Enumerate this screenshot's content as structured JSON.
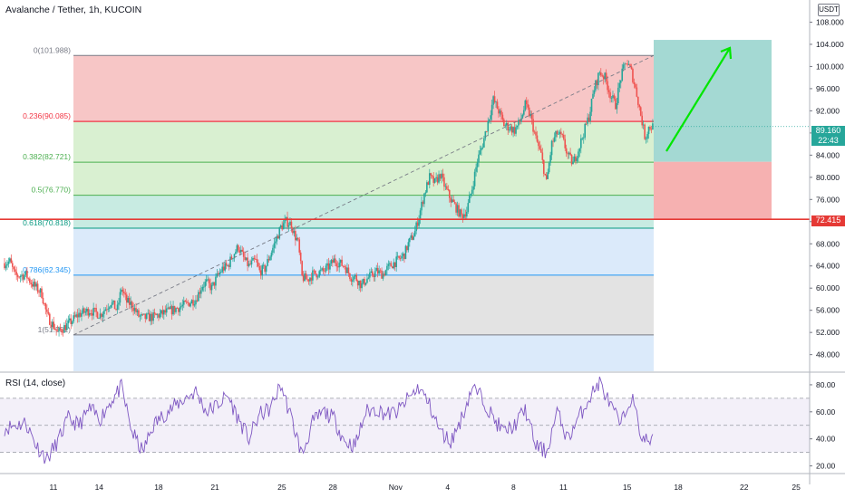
{
  "header": {
    "title": "Avalanche / Tether, 1h, KUCOIN",
    "currency": "USDT"
  },
  "price_badges": {
    "current_price": "89.160",
    "countdown": "22:43",
    "level_price": "72.415"
  },
  "colors": {
    "bull_candle": "#26a69a",
    "bear_candle": "#ef5350",
    "rsi_line": "#7e57c2",
    "arrow": "#00e600",
    "horizontal_line": "#e53935"
  },
  "chart_data": [
    {
      "type": "candlestick",
      "instrument": "Avalanche / Tether",
      "timeframe": "1h",
      "exchange": "KUCOIN",
      "x_ticks": [
        "11",
        "14",
        "18",
        "21",
        "25",
        "28",
        "Nov",
        "4",
        "8",
        "11",
        "15",
        "18",
        "22",
        "25"
      ],
      "y_ticks": [
        "48.000",
        "52.000",
        "56.000",
        "60.000",
        "64.000",
        "68.000",
        "72.000",
        "76.000",
        "80.000",
        "84.000",
        "88.000",
        "92.000",
        "96.000",
        "100.000",
        "104.000",
        "108.000"
      ],
      "ylim": [
        45,
        112
      ],
      "price_path": [
        {
          "x": 0,
          "y": 64.5
        },
        {
          "x": 0.5,
          "y": 64.8
        },
        {
          "x": 1,
          "y": 62.2
        },
        {
          "x": 2,
          "y": 62.4
        },
        {
          "x": 2.5,
          "y": 61.0
        },
        {
          "x": 3,
          "y": 60.0
        },
        {
          "x": 3.5,
          "y": 59.0
        },
        {
          "x": 4,
          "y": 55.0
        },
        {
          "x": 4.5,
          "y": 53.5
        },
        {
          "x": 5,
          "y": 52.0
        },
        {
          "x": 6,
          "y": 53.5
        },
        {
          "x": 7,
          "y": 55.3
        },
        {
          "x": 8,
          "y": 56.0
        },
        {
          "x": 9,
          "y": 55.2
        },
        {
          "x": 10,
          "y": 57.5
        },
        {
          "x": 10.6,
          "y": 56.0
        },
        {
          "x": 11,
          "y": 60.0
        },
        {
          "x": 11.5,
          "y": 57.5
        },
        {
          "x": 12,
          "y": 57.0
        },
        {
          "x": 12.6,
          "y": 55.0
        },
        {
          "x": 13,
          "y": 54.6
        },
        {
          "x": 14,
          "y": 54.8
        },
        {
          "x": 14.6,
          "y": 55.2
        },
        {
          "x": 15,
          "y": 55.5
        },
        {
          "x": 16,
          "y": 56.2
        },
        {
          "x": 17,
          "y": 57.0
        },
        {
          "x": 18,
          "y": 58.0
        },
        {
          "x": 18.6,
          "y": 60.5
        },
        {
          "x": 19,
          "y": 61.0
        },
        {
          "x": 19.5,
          "y": 60.0
        },
        {
          "x": 20,
          "y": 62.0
        },
        {
          "x": 20.5,
          "y": 63.5
        },
        {
          "x": 21,
          "y": 64.0
        },
        {
          "x": 21.5,
          "y": 66.0
        },
        {
          "x": 22,
          "y": 67.5
        },
        {
          "x": 22.6,
          "y": 65.0
        },
        {
          "x": 23,
          "y": 64.0
        },
        {
          "x": 23.6,
          "y": 65.0
        },
        {
          "x": 24,
          "y": 63.0
        },
        {
          "x": 24.5,
          "y": 63.5
        },
        {
          "x": 25,
          "y": 66.0
        },
        {
          "x": 25.6,
          "y": 69.0
        },
        {
          "x": 26,
          "y": 71.0
        },
        {
          "x": 26.5,
          "y": 72.0
        },
        {
          "x": 27,
          "y": 71.5
        },
        {
          "x": 27.3,
          "y": 69.5
        },
        {
          "x": 27.6,
          "y": 68.5
        },
        {
          "x": 28,
          "y": 62.0
        },
        {
          "x": 28.5,
          "y": 61.5
        },
        {
          "x": 29,
          "y": 62.5
        },
        {
          "x": 30,
          "y": 63.0
        },
        {
          "x": 30.6,
          "y": 64.0
        },
        {
          "x": 31,
          "y": 65.0
        },
        {
          "x": 32,
          "y": 64.0
        },
        {
          "x": 32.6,
          "y": 62.0
        },
        {
          "x": 33,
          "y": 62.0
        },
        {
          "x": 33.6,
          "y": 60.5
        },
        {
          "x": 34,
          "y": 61.5
        },
        {
          "x": 35,
          "y": 63.0
        },
        {
          "x": 35.6,
          "y": 62.5
        },
        {
          "x": 36,
          "y": 63.5
        },
        {
          "x": 36.6,
          "y": 64.5
        },
        {
          "x": 37,
          "y": 65.0
        },
        {
          "x": 37.6,
          "y": 66.0
        },
        {
          "x": 38,
          "y": 68.0
        },
        {
          "x": 38.6,
          "y": 70.0
        },
        {
          "x": 39,
          "y": 73.0
        },
        {
          "x": 39.5,
          "y": 77.0
        },
        {
          "x": 40,
          "y": 80.0
        },
        {
          "x": 40.5,
          "y": 79.0
        },
        {
          "x": 41,
          "y": 80.5
        },
        {
          "x": 41.5,
          "y": 78.0
        },
        {
          "x": 42,
          "y": 76.0
        },
        {
          "x": 42.5,
          "y": 74.5
        },
        {
          "x": 43,
          "y": 73.0
        },
        {
          "x": 43.5,
          "y": 74.0
        },
        {
          "x": 44,
          "y": 78.0
        },
        {
          "x": 44.5,
          "y": 83.0
        },
        {
          "x": 45,
          "y": 86.0
        },
        {
          "x": 45.5,
          "y": 90.0
        },
        {
          "x": 46,
          "y": 94.0
        },
        {
          "x": 46.5,
          "y": 92.0
        },
        {
          "x": 47,
          "y": 89.5
        },
        {
          "x": 47.5,
          "y": 89.0
        },
        {
          "x": 48,
          "y": 88.5
        },
        {
          "x": 48.5,
          "y": 90.0
        },
        {
          "x": 49,
          "y": 93.0
        },
        {
          "x": 49.5,
          "y": 91.0
        },
        {
          "x": 50,
          "y": 87.0
        },
        {
          "x": 50.5,
          "y": 84.0
        },
        {
          "x": 51,
          "y": 79.0
        },
        {
          "x": 51.5,
          "y": 86.0
        },
        {
          "x": 52,
          "y": 88.0
        },
        {
          "x": 52.5,
          "y": 87.0
        },
        {
          "x": 53,
          "y": 84.0
        },
        {
          "x": 53.5,
          "y": 82.5
        },
        {
          "x": 54,
          "y": 85.0
        },
        {
          "x": 54.5,
          "y": 88.0
        },
        {
          "x": 55,
          "y": 91.0
        },
        {
          "x": 55.5,
          "y": 96.0
        },
        {
          "x": 56,
          "y": 99.0
        },
        {
          "x": 56.5,
          "y": 98.0
        },
        {
          "x": 57,
          "y": 95.0
        },
        {
          "x": 57.5,
          "y": 93.0
        },
        {
          "x": 58,
          "y": 98.0
        },
        {
          "x": 58.5,
          "y": 101.0
        },
        {
          "x": 59,
          "y": 99.0
        },
        {
          "x": 59.5,
          "y": 95.0
        },
        {
          "x": 60,
          "y": 90.0
        },
        {
          "x": 60.3,
          "y": 87.0
        },
        {
          "x": 60.6,
          "y": 89.0
        },
        {
          "x": 61,
          "y": 89.2
        }
      ],
      "fib_levels": [
        {
          "ratio": "0",
          "value": 101.988,
          "label": "0(101.988)",
          "color": "#787b86"
        },
        {
          "ratio": "0.236",
          "value": 90.085,
          "label": "0.236(90.085)",
          "color": "#f23645"
        },
        {
          "ratio": "0.382",
          "value": 82.721,
          "label": "0.382(82.721)",
          "color": "#4caf50"
        },
        {
          "ratio": "0.5",
          "value": 76.77,
          "label": "0.5(76.770)",
          "color": "#4caf50"
        },
        {
          "ratio": "0.618",
          "value": 70.818,
          "label": "0.618(70.818)",
          "color": "#089981"
        },
        {
          "ratio": "0.786",
          "value": 62.345,
          "label": "0.786(62.345)",
          "color": "#2196f3"
        },
        {
          "ratio": "1",
          "value": 51.551,
          "label": "1(51.551)",
          "color": "#787b86"
        }
      ],
      "fib_zones": [
        {
          "from": 101.988,
          "to": 90.085,
          "color": "#f7c6c6"
        },
        {
          "from": 90.085,
          "to": 82.721,
          "color": "#d9f0d1"
        },
        {
          "from": 82.721,
          "to": 76.77,
          "color": "#d9f0d1"
        },
        {
          "from": 76.77,
          "to": 70.818,
          "color": "#c8ebe2"
        },
        {
          "from": 70.818,
          "to": 62.345,
          "color": "#dbeafa"
        },
        {
          "from": 62.345,
          "to": 51.551,
          "color": "#e3e3e3"
        },
        {
          "from": 51.551,
          "to": 45,
          "color": "#dbeafa"
        }
      ],
      "horizontal_line": 72.415,
      "long_position": {
        "entry": 82.8,
        "target": 104.8,
        "stop": 72.415
      },
      "current_price": 89.16
    },
    {
      "type": "line",
      "title": "RSI (14, close)",
      "y_ticks": [
        "20.00",
        "40.00",
        "60.00",
        "80.00"
      ],
      "ylim": [
        15,
        88
      ],
      "overbought": 70,
      "oversold": 30,
      "middle": 50,
      "anchors": [
        {
          "x": 0,
          "y": 48
        },
        {
          "x": 2,
          "y": 52
        },
        {
          "x": 3,
          "y": 35
        },
        {
          "x": 4,
          "y": 25
        },
        {
          "x": 5,
          "y": 38
        },
        {
          "x": 6,
          "y": 55
        },
        {
          "x": 7,
          "y": 50
        },
        {
          "x": 8,
          "y": 62
        },
        {
          "x": 9,
          "y": 55
        },
        {
          "x": 10,
          "y": 68
        },
        {
          "x": 11,
          "y": 78
        },
        {
          "x": 12,
          "y": 45
        },
        {
          "x": 13,
          "y": 30
        },
        {
          "x": 14,
          "y": 50
        },
        {
          "x": 15,
          "y": 58
        },
        {
          "x": 17,
          "y": 70
        },
        {
          "x": 18,
          "y": 75
        },
        {
          "x": 19,
          "y": 60
        },
        {
          "x": 20,
          "y": 65
        },
        {
          "x": 21,
          "y": 72
        },
        {
          "x": 22,
          "y": 55
        },
        {
          "x": 23,
          "y": 40
        },
        {
          "x": 24,
          "y": 58
        },
        {
          "x": 25,
          "y": 62
        },
        {
          "x": 26,
          "y": 80
        },
        {
          "x": 27,
          "y": 55
        },
        {
          "x": 28,
          "y": 28
        },
        {
          "x": 29,
          "y": 52
        },
        {
          "x": 30,
          "y": 60
        },
        {
          "x": 31,
          "y": 55
        },
        {
          "x": 32,
          "y": 38
        },
        {
          "x": 33,
          "y": 35
        },
        {
          "x": 34,
          "y": 60
        },
        {
          "x": 35,
          "y": 62
        },
        {
          "x": 36,
          "y": 58
        },
        {
          "x": 37,
          "y": 60
        },
        {
          "x": 38,
          "y": 70
        },
        {
          "x": 39,
          "y": 78
        },
        {
          "x": 40,
          "y": 65
        },
        {
          "x": 41,
          "y": 45
        },
        {
          "x": 42,
          "y": 38
        },
        {
          "x": 43,
          "y": 55
        },
        {
          "x": 44,
          "y": 78
        },
        {
          "x": 45,
          "y": 70
        },
        {
          "x": 46,
          "y": 55
        },
        {
          "x": 47,
          "y": 45
        },
        {
          "x": 48,
          "y": 50
        },
        {
          "x": 49,
          "y": 62
        },
        {
          "x": 50,
          "y": 35
        },
        {
          "x": 51,
          "y": 30
        },
        {
          "x": 52,
          "y": 60
        },
        {
          "x": 53,
          "y": 40
        },
        {
          "x": 54,
          "y": 55
        },
        {
          "x": 55,
          "y": 70
        },
        {
          "x": 56,
          "y": 82
        },
        {
          "x": 57,
          "y": 65
        },
        {
          "x": 58,
          "y": 50
        },
        {
          "x": 59,
          "y": 72
        },
        {
          "x": 60,
          "y": 40
        },
        {
          "x": 61,
          "y": 38
        }
      ]
    }
  ]
}
